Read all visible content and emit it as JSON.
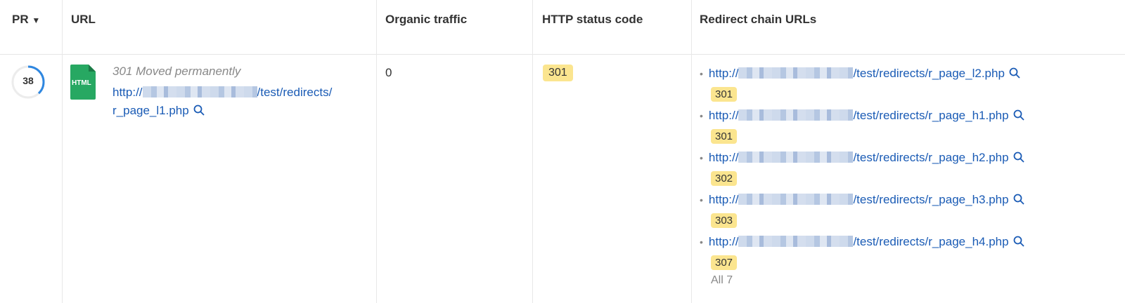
{
  "columns": [
    "PR",
    "URL",
    "Organic traffic",
    "HTTP status code",
    "Redirect chain URLs"
  ],
  "sort_icon": "triangle-down-icon",
  "row": {
    "pr": "38",
    "pr_fraction": 0.38,
    "file_type": "HTML",
    "status_text": "301 Moved permanently",
    "url_prefix": "http://",
    "url_suffix_line1": "/test/redirects/",
    "url_suffix_line2": "r_page_l1.php",
    "organic_traffic": "0",
    "http_status": "301",
    "redirects": [
      {
        "prefix": "http://",
        "path": "/test/redirects/r_page_l2.php",
        "code": "301"
      },
      {
        "prefix": "http://",
        "path": "/test/redirects/r_page_h1.php",
        "code": "301"
      },
      {
        "prefix": "http://",
        "path": "/test/redirects/r_page_h2.php",
        "code": "302"
      },
      {
        "prefix": "http://",
        "path": "/test/redirects/r_page_h3.php",
        "code": "303"
      },
      {
        "prefix": "http://",
        "path": "/test/redirects/r_page_h4.php",
        "code": "307"
      }
    ],
    "all_label": "All 7"
  },
  "colors": {
    "link": "#1a5bb5",
    "badge": "#fbe58f",
    "html_icon": "#27a862",
    "pr_ring": "#2f87e0"
  }
}
